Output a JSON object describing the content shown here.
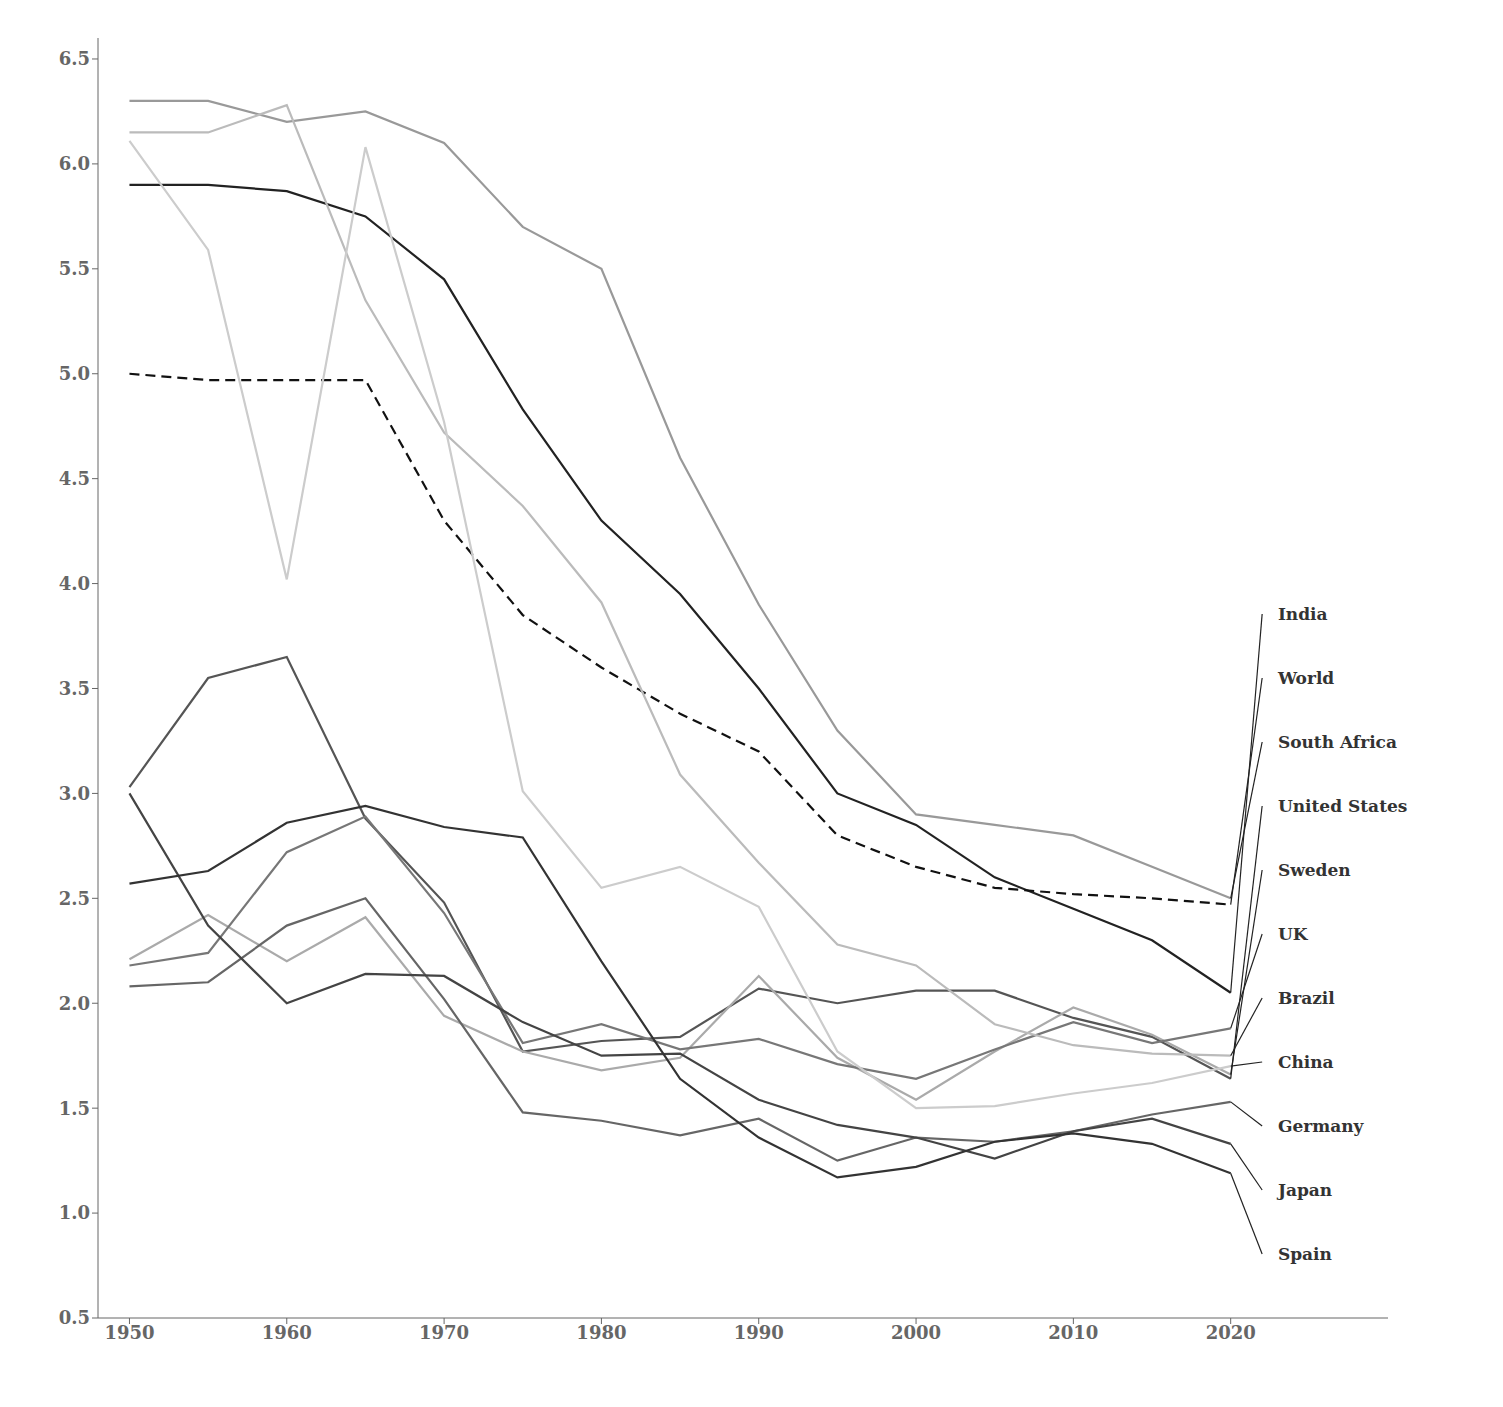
{
  "chart_data": {
    "type": "line",
    "x": [
      1950,
      1955,
      1960,
      1965,
      1970,
      1975,
      1980,
      1985,
      1990,
      1995,
      2000,
      2005,
      2010,
      2015,
      2020
    ],
    "series": [
      {
        "name": "India",
        "color": "#222222",
        "line_style": "solid",
        "values": [
          5.9,
          5.9,
          5.87,
          5.75,
          5.45,
          4.83,
          4.3,
          3.95,
          3.5,
          3.0,
          2.85,
          2.6,
          2.45,
          2.3,
          2.05
        ]
      },
      {
        "name": "World",
        "color": "#111111",
        "line_style": "dashed",
        "values": [
          5.0,
          4.97,
          4.97,
          4.97,
          4.3,
          3.85,
          3.6,
          3.38,
          3.2,
          2.8,
          2.65,
          2.55,
          2.52,
          2.5,
          2.47
        ]
      },
      {
        "name": "South Africa",
        "color": "#999999",
        "line_style": "solid",
        "values": [
          6.3,
          6.3,
          6.2,
          6.25,
          6.1,
          5.7,
          5.5,
          4.6,
          3.9,
          3.3,
          2.9,
          2.85,
          2.8,
          2.65,
          2.5
        ]
      },
      {
        "name": "United States",
        "color": "#555555",
        "line_style": "solid",
        "values": [
          3.03,
          3.55,
          3.65,
          2.88,
          2.48,
          1.77,
          1.82,
          1.84,
          2.07,
          2.0,
          2.06,
          2.06,
          1.93,
          1.84,
          1.64
        ]
      },
      {
        "name": "Sweden",
        "color": "#aaaaaa",
        "line_style": "solid",
        "values": [
          2.21,
          2.42,
          2.2,
          2.41,
          1.94,
          1.77,
          1.68,
          1.74,
          2.13,
          1.74,
          1.54,
          1.77,
          1.98,
          1.85,
          1.66
        ]
      },
      {
        "name": "UK",
        "color": "#777777",
        "line_style": "solid",
        "values": [
          2.18,
          2.24,
          2.72,
          2.89,
          2.43,
          1.81,
          1.9,
          1.78,
          1.83,
          1.71,
          1.64,
          1.78,
          1.91,
          1.81,
          1.88
        ]
      },
      {
        "name": "Brazil",
        "color": "#bbbbbb",
        "line_style": "solid",
        "values": [
          6.15,
          6.15,
          6.28,
          5.35,
          4.72,
          4.37,
          3.91,
          3.09,
          2.67,
          2.28,
          2.18,
          1.9,
          1.8,
          1.76,
          1.75
        ]
      },
      {
        "name": "China",
        "color": "#cccccc",
        "line_style": "solid",
        "values": [
          6.11,
          5.59,
          4.02,
          6.08,
          4.77,
          3.01,
          2.55,
          2.65,
          2.46,
          1.77,
          1.5,
          1.51,
          1.57,
          1.62,
          1.7
        ]
      },
      {
        "name": "Germany",
        "color": "#666666",
        "line_style": "solid",
        "values": [
          2.08,
          2.1,
          2.37,
          2.5,
          2.02,
          1.48,
          1.44,
          1.37,
          1.45,
          1.25,
          1.36,
          1.34,
          1.39,
          1.47,
          1.53
        ]
      },
      {
        "name": "Japan",
        "color": "#444444",
        "line_style": "solid",
        "values": [
          3.0,
          2.37,
          2.0,
          2.14,
          2.13,
          1.91,
          1.75,
          1.76,
          1.54,
          1.42,
          1.36,
          1.26,
          1.39,
          1.45,
          1.33
        ]
      },
      {
        "name": "Spain",
        "color": "#333333",
        "line_style": "solid",
        "values": [
          2.57,
          2.63,
          2.86,
          2.94,
          2.84,
          2.79,
          2.2,
          1.64,
          1.36,
          1.17,
          1.22,
          1.34,
          1.38,
          1.33,
          1.19
        ]
      }
    ],
    "xlim": [
      1948,
      2030
    ],
    "xticks": [
      1950,
      1960,
      1970,
      1980,
      1990,
      2000,
      2010,
      2020
    ],
    "ylim": [
      0.5,
      6.6
    ],
    "yticks": [
      0.5,
      {
        "value": 1,
        "label": "1.0"
      },
      1.5,
      {
        "value": 2,
        "label": "2.0"
      },
      2.5,
      {
        "value": 3,
        "label": "3.0"
      },
      3.5,
      {
        "value": 4,
        "label": "4.0"
      },
      4.5,
      {
        "value": 5,
        "label": "5.0"
      },
      5.5,
      {
        "value": 6,
        "label": "6.0"
      },
      6.5
    ],
    "grid": false
  }
}
